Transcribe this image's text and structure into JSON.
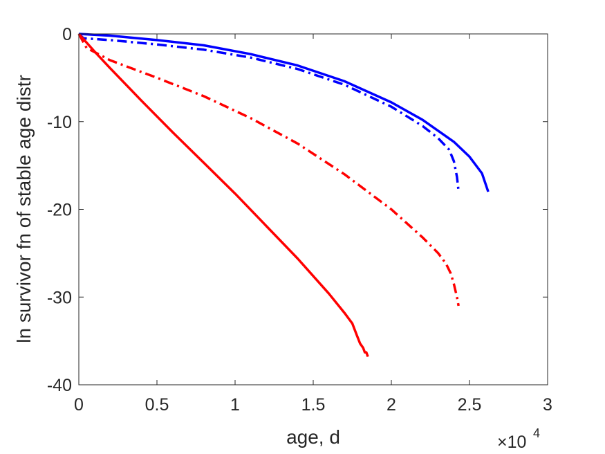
{
  "chart_data": {
    "type": "line",
    "title": "",
    "xlabel": "age, d",
    "ylabel": "ln survivor fn of stable age distr",
    "x_multiplier": {
      "base": "×10",
      "exponent": "4"
    },
    "xlim": [
      0,
      30000
    ],
    "ylim": [
      -40,
      0
    ],
    "x_ticks": [
      0,
      5000,
      10000,
      15000,
      20000,
      25000,
      30000
    ],
    "x_tick_labels": [
      "0",
      "0.5",
      "1",
      "1.5",
      "2",
      "2.5",
      "3"
    ],
    "y_ticks": [
      0,
      -10,
      -20,
      -30,
      -40
    ],
    "y_tick_labels": [
      "0",
      "-10",
      "-20",
      "-30",
      "-40"
    ],
    "grid": false,
    "series": [
      {
        "color": "#0000ff",
        "style": "solid",
        "x": [
          0,
          2000,
          5000,
          8000,
          11000,
          14000,
          17000,
          20000,
          22000,
          24000,
          25000,
          25800,
          26200
        ],
        "y": [
          0,
          -0.2,
          -0.7,
          -1.3,
          -2.3,
          -3.6,
          -5.4,
          -7.8,
          -9.8,
          -12.3,
          -14.0,
          -15.9,
          -18.0
        ]
      },
      {
        "color": "#0000ff",
        "style": "dashdot",
        "x": [
          0,
          300,
          2000,
          5000,
          8000,
          11000,
          14000,
          17000,
          20000,
          22000,
          23000,
          23700,
          24000,
          24200,
          24300
        ],
        "y": [
          0,
          -0.5,
          -0.7,
          -1.2,
          -1.8,
          -2.7,
          -4.0,
          -5.8,
          -8.3,
          -10.5,
          -11.9,
          -13.2,
          -14.5,
          -16.3,
          -17.9
        ]
      },
      {
        "color": "#ff0000",
        "style": "dashdot",
        "x": [
          0,
          500,
          2000,
          5000,
          8000,
          11000,
          14000,
          17000,
          20000,
          22000,
          23000,
          23500,
          23800,
          24000,
          24200,
          24300
        ],
        "y": [
          0,
          -1.6,
          -3.0,
          -5.0,
          -7.1,
          -9.6,
          -12.5,
          -16.0,
          -20.0,
          -23.2,
          -25.0,
          -26.2,
          -27.3,
          -28.5,
          -30.0,
          -31.0
        ]
      },
      {
        "color": "#ff0000",
        "style": "solid",
        "x": [
          0,
          1000,
          2000,
          4000,
          6000,
          8000,
          10000,
          12000,
          14000,
          16000,
          17000,
          17500,
          17800,
          18000,
          18200,
          18300,
          18400,
          18500
        ],
        "y": [
          0,
          -2.0,
          -3.9,
          -7.6,
          -11.2,
          -14.7,
          -18.2,
          -21.9,
          -25.6,
          -29.6,
          -31.8,
          -33.0,
          -34.4,
          -35.3,
          -35.8,
          -36.3,
          -36.3,
          -36.8
        ]
      }
    ]
  }
}
